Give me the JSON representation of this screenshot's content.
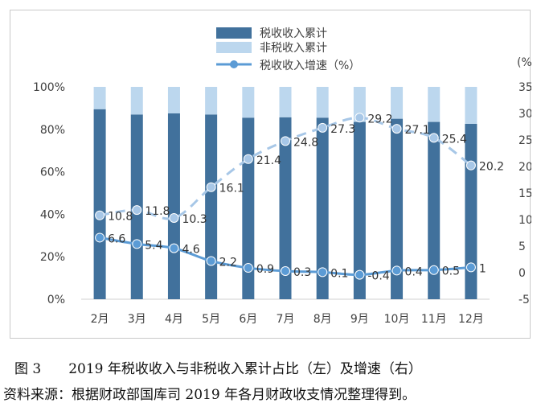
{
  "chart_data": {
    "type": "bar+line",
    "categories": [
      "2月",
      "3月",
      "4月",
      "5月",
      "6月",
      "7月",
      "8月",
      "9月",
      "10月",
      "11月",
      "12月"
    ],
    "stacked_share": {
      "series": [
        {
          "name": "税收收入累计",
          "values": [
            89.5,
            87,
            87.5,
            87,
            85.5,
            85.7,
            85.5,
            83.5,
            85,
            83.5,
            82.6
          ],
          "color": "#41719c"
        },
        {
          "name": "非税收入累计",
          "values": [
            10.5,
            13,
            12.5,
            13,
            14.5,
            14.3,
            14.5,
            16.5,
            15,
            16.5,
            17.4
          ],
          "color": "#bcd7ee"
        }
      ],
      "ylim": [
        0,
        100
      ],
      "yticks": [
        "0%",
        "20%",
        "40%",
        "60%",
        "80%",
        "100%"
      ]
    },
    "growth": {
      "series": [
        {
          "name": "税收收入增速（%）",
          "values": [
            6.6,
            5.4,
            4.6,
            2.2,
            0.9,
            0.3,
            0.1,
            -0.4,
            0.4,
            0.5,
            1
          ],
          "labels": [
            "6.6",
            "5.4",
            "4.6",
            "2.2",
            "0.9",
            "0.3",
            "0.1",
            "-0.4",
            "0.4",
            "0.5",
            "1"
          ],
          "color": "#5b9bd5",
          "style": "solid"
        },
        {
          "name": "",
          "values": [
            10.8,
            11.8,
            10.3,
            16.1,
            21.4,
            24.8,
            27.3,
            29.2,
            27.1,
            25.4,
            20.2
          ],
          "labels": [
            "10.8",
            "11.8",
            "10.3",
            "16.1",
            "21.4",
            "24.8",
            "27.3",
            "29.2",
            "27.1",
            "25.4",
            "20.2"
          ],
          "color": "#a7c7e7",
          "style": "dashed"
        }
      ],
      "ylim": [
        -5,
        35
      ],
      "yticks": [
        "-5",
        "0",
        "5",
        "10",
        "15",
        "20",
        "25",
        "30",
        "35"
      ],
      "unit": "(%)"
    },
    "legend": [
      "税收收入累计",
      "非税收入累计",
      "税收收入增速（%）"
    ],
    "legend_position": "top-center"
  },
  "caption": "图 3　　2019 年税收收入与非税收入累计占比（左）及增速（右）",
  "source": "资料来源：根据财政部国库司 2019 年各月财政收支情况整理得到。"
}
